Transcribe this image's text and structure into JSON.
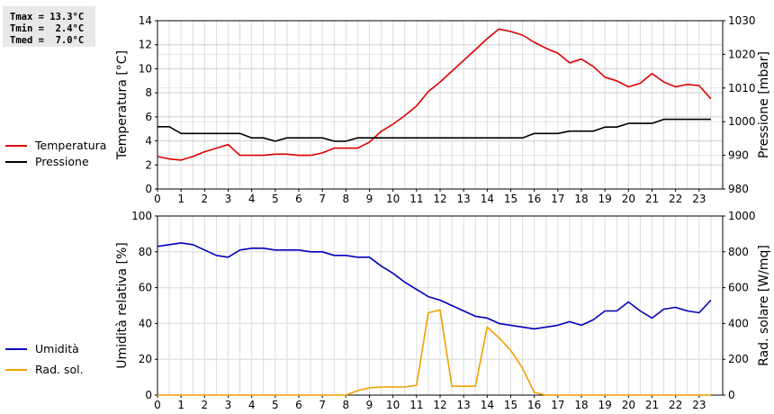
{
  "stats": {
    "tmax": "Tmax = 13.3°C",
    "tmin": "Tmin =  2.4°C",
    "tmed": "Tmed =  7.0°C"
  },
  "chart_data": [
    {
      "type": "line",
      "x_ticks": [
        "0",
        "1",
        "2",
        "3",
        "4",
        "5",
        "6",
        "7",
        "8",
        "9",
        "10",
        "11",
        "12",
        "13",
        "14",
        "15",
        "16",
        "17",
        "18",
        "19",
        "20",
        "21",
        "22",
        "23"
      ],
      "xlim": [
        0,
        24
      ],
      "ylabel_left": "Temperatura [°C]",
      "ylim_left": [
        0,
        14
      ],
      "yticks_left": [
        "0",
        "2",
        "4",
        "6",
        "8",
        "10",
        "12",
        "14"
      ],
      "ylabel_right": "Pressione [mbar]",
      "ylim_right": [
        980,
        1030
      ],
      "yticks_right": [
        "980",
        "990",
        "1000",
        "1010",
        "1020",
        "1030"
      ],
      "grid": true,
      "legend_position": "left",
      "series": [
        {
          "name": "Temperatura",
          "axis": "left",
          "color": "#dd0000",
          "x": [
            0,
            0.5,
            1,
            1.5,
            2,
            2.5,
            3,
            3.5,
            4,
            4.5,
            5,
            5.5,
            6,
            6.5,
            7,
            7.5,
            8,
            8.5,
            9,
            9.5,
            10,
            10.5,
            11,
            11.5,
            12,
            12.5,
            13,
            13.5,
            14,
            14.5,
            15,
            15.5,
            16,
            16.5,
            17,
            17.5,
            18,
            18.5,
            19,
            19.5,
            20,
            20.5,
            21,
            21.5,
            22,
            22.5,
            23,
            23.5
          ],
          "values": [
            2.7,
            2.5,
            2.4,
            2.7,
            3.1,
            3.4,
            3.7,
            2.8,
            2.8,
            2.8,
            2.9,
            2.9,
            2.8,
            2.8,
            3.0,
            3.4,
            3.4,
            3.4,
            3.9,
            4.8,
            5.4,
            6.1,
            6.9,
            8.1,
            8.9,
            9.8,
            10.7,
            11.6,
            12.5,
            13.3,
            13.1,
            12.8,
            12.2,
            11.7,
            11.3,
            10.5,
            10.8,
            10.2,
            9.3,
            9.0,
            8.5,
            8.8,
            9.6,
            8.9,
            8.5,
            8.7,
            8.6,
            7.5
          ]
        },
        {
          "name": "Pressione",
          "axis": "right",
          "color": "#000000",
          "x": [
            0,
            0.5,
            1,
            1.5,
            2,
            2.5,
            3,
            3.5,
            4,
            4.5,
            5,
            5.5,
            6,
            6.5,
            7,
            7.5,
            8,
            8.5,
            9,
            9.5,
            10,
            10.5,
            11,
            11.5,
            12,
            12.5,
            13,
            13.5,
            14,
            14.5,
            15,
            15.5,
            16,
            16.5,
            17,
            17.5,
            18,
            18.5,
            19,
            19.5,
            20,
            20.5,
            21,
            21.5,
            22,
            22.5,
            23,
            23.5
          ],
          "values": [
            998.5,
            998.5,
            996.5,
            996.5,
            996.5,
            996.5,
            996.5,
            996.5,
            995.2,
            995.2,
            994.2,
            995.2,
            995.2,
            995.2,
            995.2,
            994.2,
            994.2,
            995.2,
            995.2,
            995.2,
            995.2,
            995.2,
            995.2,
            995.2,
            995.2,
            995.2,
            995.2,
            995.2,
            995.2,
            995.2,
            995.2,
            995.2,
            996.5,
            996.5,
            996.5,
            997.2,
            997.2,
            997.2,
            998.4,
            998.4,
            999.5,
            999.5,
            999.5,
            1000.7,
            1000.7,
            1000.7,
            1000.7,
            1000.7
          ]
        }
      ]
    },
    {
      "type": "line",
      "x_ticks": [
        "0",
        "1",
        "2",
        "3",
        "4",
        "5",
        "6",
        "7",
        "8",
        "9",
        "10",
        "11",
        "12",
        "13",
        "14",
        "15",
        "16",
        "17",
        "18",
        "19",
        "20",
        "21",
        "22",
        "23"
      ],
      "xlim": [
        0,
        24
      ],
      "ylabel_left": "Umidità relativa [%]",
      "ylim_left": [
        0,
        100
      ],
      "yticks_left": [
        "0",
        "20",
        "40",
        "60",
        "80",
        "100"
      ],
      "ylabel_right": "Rad. solare [W/mq]",
      "ylim_right": [
        0,
        1000
      ],
      "yticks_right": [
        "0",
        "200",
        "400",
        "600",
        "800",
        "1000"
      ],
      "grid": true,
      "legend_position": "left",
      "series": [
        {
          "name": "Umidità",
          "axis": "left",
          "color": "#0000bb",
          "x": [
            0,
            0.5,
            1,
            1.5,
            2,
            2.5,
            3,
            3.5,
            4,
            4.5,
            5,
            5.5,
            6,
            6.5,
            7,
            7.5,
            8,
            8.5,
            9,
            9.5,
            10,
            10.5,
            11,
            11.5,
            12,
            12.5,
            13,
            13.5,
            14,
            14.5,
            15,
            15.5,
            16,
            16.5,
            17,
            17.5,
            18,
            18.5,
            19,
            19.5,
            20,
            20.5,
            21,
            21.5,
            22,
            22.5,
            23,
            23.5
          ],
          "values": [
            83,
            84,
            85,
            84,
            81,
            78,
            77,
            81,
            82,
            82,
            81,
            81,
            81,
            80,
            80,
            78,
            78,
            77,
            77,
            72,
            68,
            63,
            59,
            55,
            53,
            50,
            47,
            44,
            43,
            40,
            39,
            38,
            37,
            38,
            39,
            41,
            39,
            42,
            47,
            47,
            52,
            47,
            43,
            48,
            49,
            47,
            46,
            53
          ]
        },
        {
          "name": "Rad. sol.",
          "axis": "right",
          "color": "#f0a000",
          "x": [
            0,
            1,
            2,
            3,
            4,
            5,
            6,
            7,
            8,
            8.5,
            9,
            9.5,
            10,
            10.5,
            11,
            11.5,
            12,
            12.5,
            13,
            13.5,
            14,
            14.5,
            15,
            15.5,
            16,
            16.5,
            17,
            18,
            19,
            20,
            21,
            22,
            23,
            23.5
          ],
          "values": [
            0,
            0,
            0,
            0,
            0,
            0,
            0,
            0,
            0,
            25,
            40,
            45,
            45,
            45,
            55,
            460,
            475,
            50,
            50,
            50,
            380,
            320,
            250,
            150,
            15,
            0,
            0,
            0,
            0,
            0,
            0,
            0,
            0,
            0
          ]
        }
      ]
    }
  ]
}
